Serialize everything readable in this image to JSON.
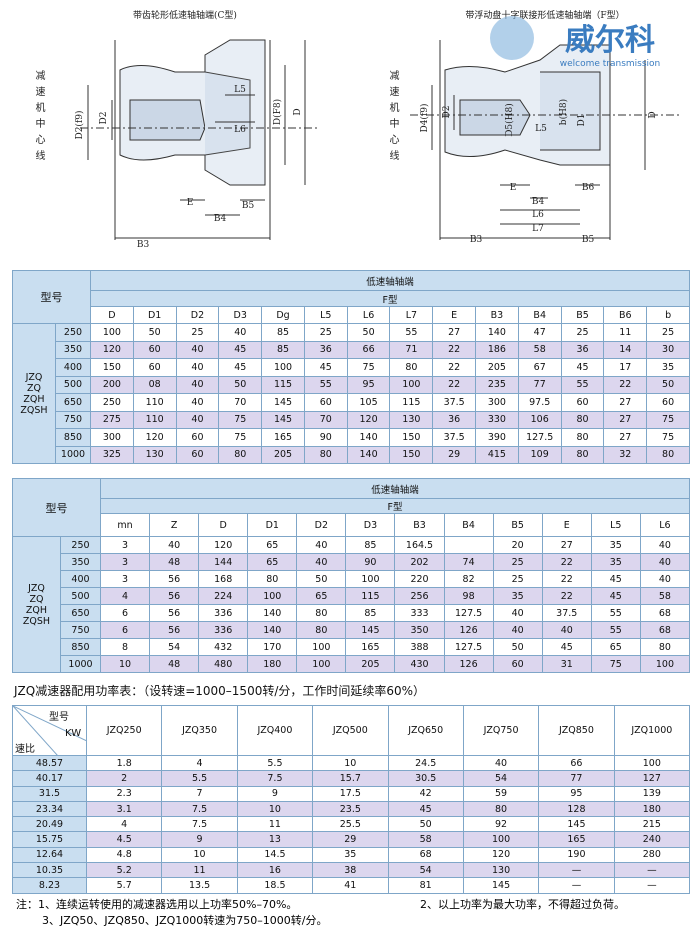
{
  "logo": {
    "name": "威尔科",
    "tagline": "welcome transmission"
  },
  "drawings": {
    "left": {
      "title": "带齿轮形低速轴轴端(C型)",
      "side_label": "减速机中心线",
      "labels": [
        "D2(f9)",
        "D2",
        "L5",
        "L6",
        "D(F8)",
        "D",
        "E",
        "B4",
        "B5",
        "B3"
      ]
    },
    "right": {
      "title": "带浮动盘十字联接形低速轴轴端（F型）",
      "side_label": "减速机中心线",
      "labels": [
        "D4(f9)",
        "D2",
        "D5(H8)",
        "L5",
        "b(H8)",
        "D1",
        "D",
        "E",
        "B4",
        "B6",
        "L6",
        "L7",
        "B3",
        "B5"
      ]
    }
  },
  "table1": {
    "header_model": "型号",
    "header_group": "低速轴轴端",
    "header_type": "F型",
    "series_labels": [
      "JZQ",
      "ZQ",
      "ZQH",
      "ZQSH"
    ],
    "columns": [
      "D",
      "D1",
      "D2",
      "D3",
      "Dg",
      "L5",
      "L6",
      "L7",
      "E",
      "B3",
      "B4",
      "B5",
      "B6",
      "b"
    ],
    "rows": [
      {
        "size": "250",
        "cells": [
          "100",
          "50",
          "25",
          "40",
          "85",
          "25",
          "50",
          "55",
          "27",
          "140",
          "47",
          "25",
          "11",
          "25"
        ]
      },
      {
        "size": "350",
        "cells": [
          "120",
          "60",
          "40",
          "45",
          "85",
          "36",
          "66",
          "71",
          "22",
          "186",
          "58",
          "36",
          "14",
          "30"
        ]
      },
      {
        "size": "400",
        "cells": [
          "150",
          "60",
          "40",
          "45",
          "100",
          "45",
          "75",
          "80",
          "22",
          "205",
          "67",
          "45",
          "17",
          "35"
        ]
      },
      {
        "size": "500",
        "cells": [
          "200",
          "08",
          "40",
          "50",
          "115",
          "55",
          "95",
          "100",
          "22",
          "235",
          "77",
          "55",
          "22",
          "50"
        ]
      },
      {
        "size": "650",
        "cells": [
          "250",
          "110",
          "40",
          "70",
          "145",
          "60",
          "105",
          "115",
          "37.5",
          "300",
          "97.5",
          "60",
          "27",
          "60"
        ]
      },
      {
        "size": "750",
        "cells": [
          "275",
          "110",
          "40",
          "75",
          "145",
          "70",
          "120",
          "130",
          "36",
          "330",
          "106",
          "80",
          "27",
          "75"
        ]
      },
      {
        "size": "850",
        "cells": [
          "300",
          "120",
          "60",
          "75",
          "165",
          "90",
          "140",
          "150",
          "37.5",
          "390",
          "127.5",
          "80",
          "27",
          "75"
        ]
      },
      {
        "size": "1000",
        "cells": [
          "325",
          "130",
          "60",
          "80",
          "205",
          "80",
          "140",
          "150",
          "29",
          "415",
          "109",
          "80",
          "32",
          "80"
        ]
      }
    ]
  },
  "table2": {
    "header_model": "型号",
    "header_group": "低速轴轴端",
    "header_type": "F型",
    "series_labels": [
      "JZQ",
      "ZQ",
      "ZQH",
      "ZQSH"
    ],
    "columns": [
      "mn",
      "Z",
      "D",
      "D1",
      "D2",
      "D3",
      "B3",
      "B4",
      "B5",
      "E",
      "L5",
      "L6"
    ],
    "rows": [
      {
        "size": "250",
        "cells": [
          "3",
          "40",
          "120",
          "65",
          "40",
          "85",
          "164.5",
          null,
          "20",
          "27",
          "35",
          "40"
        ]
      },
      {
        "size": "350",
        "cells": [
          "3",
          "48",
          "144",
          "65",
          "40",
          "90",
          "202",
          "74",
          "25",
          "22",
          "35",
          "40"
        ]
      },
      {
        "size": "400",
        "cells": [
          "3",
          "56",
          "168",
          "80",
          "50",
          "100",
          "220",
          "82",
          "25",
          "22",
          "45",
          "40"
        ]
      },
      {
        "size": "500",
        "cells": [
          "4",
          "56",
          "224",
          "100",
          "65",
          "115",
          "256",
          "98",
          "35",
          "22",
          "45",
          "58"
        ]
      },
      {
        "size": "650",
        "cells": [
          "6",
          "56",
          "336",
          "140",
          "80",
          "85",
          "333",
          "127.5",
          "40",
          "37.5",
          "55",
          "68"
        ]
      },
      {
        "size": "750",
        "cells": [
          "6",
          "56",
          "336",
          "140",
          "80",
          "145",
          "350",
          "126",
          "40",
          "40",
          "55",
          "68"
        ]
      },
      {
        "size": "850",
        "cells": [
          "8",
          "54",
          "432",
          "170",
          "100",
          "165",
          "388",
          "127.5",
          "50",
          "45",
          "65",
          "80"
        ]
      },
      {
        "size": "1000",
        "cells": [
          "10",
          "48",
          "480",
          "180",
          "100",
          "205",
          "430",
          "126",
          "60",
          "31",
          "75",
          "100"
        ]
      }
    ]
  },
  "power_table": {
    "title": "JZQ减速器配用功率表：（设转速=1000–1500转/分，工作时间延续率60%）",
    "header_model": "型号",
    "header_power": "KW",
    "header_ratio": "速比",
    "columns": [
      "JZQ250",
      "JZQ350",
      "JZQ400",
      "JZQ500",
      "JZQ650",
      "JZQ750",
      "JZQ850",
      "JZQ1000"
    ],
    "rows": [
      {
        "ratio": "48.57",
        "cells": [
          "1.8",
          "4",
          "5.5",
          "10",
          "24.5",
          "40",
          "66",
          "100"
        ]
      },
      {
        "ratio": "40.17",
        "cells": [
          "2",
          "5.5",
          "7.5",
          "15.7",
          "30.5",
          "54",
          "77",
          "127"
        ]
      },
      {
        "ratio": "31.5",
        "cells": [
          "2.3",
          "7",
          "9",
          "17.5",
          "42",
          "59",
          "95",
          "139"
        ]
      },
      {
        "ratio": "23.34",
        "cells": [
          "3.1",
          "7.5",
          "10",
          "23.5",
          "45",
          "80",
          "128",
          "180"
        ]
      },
      {
        "ratio": "20.49",
        "cells": [
          "4",
          "7.5",
          "11",
          "25.5",
          "50",
          "92",
          "145",
          "215"
        ]
      },
      {
        "ratio": "15.75",
        "cells": [
          "4.5",
          "9",
          "13",
          "29",
          "58",
          "100",
          "165",
          "240"
        ]
      },
      {
        "ratio": "12.64",
        "cells": [
          "4.8",
          "10",
          "14.5",
          "35",
          "68",
          "120",
          "190",
          "280"
        ]
      },
      {
        "ratio": "10.35",
        "cells": [
          "5.2",
          "11",
          "16",
          "38",
          "54",
          "130",
          "—",
          "—"
        ]
      },
      {
        "ratio": "8.23",
        "cells": [
          "5.7",
          "13.5",
          "18.5",
          "41",
          "81",
          "145",
          "—",
          "—"
        ]
      }
    ]
  },
  "notes": [
    "注：1、连续运转使用的减速器选用以上功率50%–70%。",
    "2、以上功率为最大功率，不得超过负荷。",
    "3、JZQ50、JZQ850、JZQ1000转速为750–1000转/分。"
  ]
}
